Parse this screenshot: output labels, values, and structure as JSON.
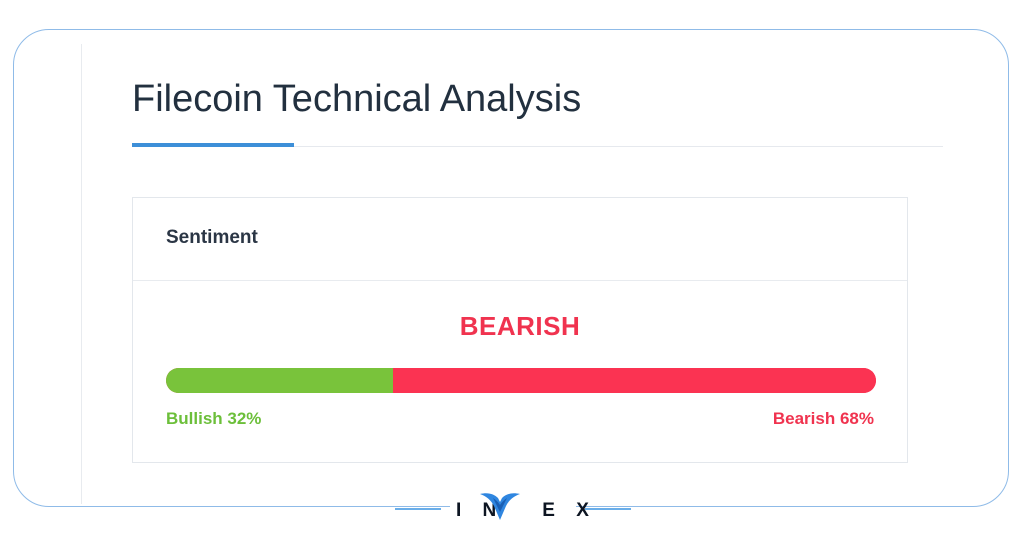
{
  "page": {
    "title": "Filecoin Technical Analysis"
  },
  "sentiment": {
    "header": "Sentiment",
    "verdict": "BEARISH",
    "bullish_label": "Bullish 32%",
    "bearish_label": "Bearish 68%",
    "bullish_percent": 32,
    "bearish_percent": 68
  },
  "brand": {
    "letters_left": "I N",
    "letters_right": "E X",
    "logo_icon": "invex-v-logo-icon"
  },
  "colors": {
    "accent_blue": "#3d8fd8",
    "bullish_green": "#79c33b",
    "bearish_red": "#fb3352",
    "title_text": "#22303f"
  }
}
